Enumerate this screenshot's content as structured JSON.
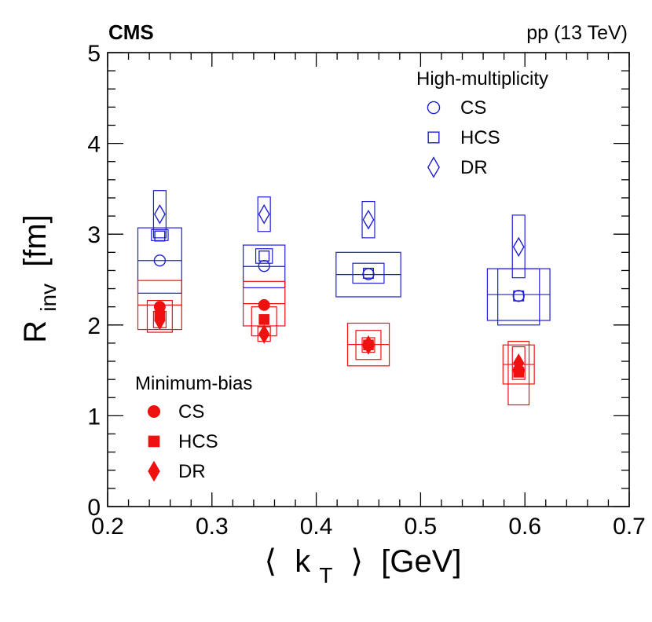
{
  "chart_data": {
    "type": "scatter",
    "title_left": "CMS",
    "title_right": "pp (13 TeV)",
    "xlabel": {
      "open": "⟨",
      "var": "k",
      "sub": "T",
      "close": "⟩",
      "unit": "[GeV]"
    },
    "ylabel": {
      "var": "R",
      "sub": "inv",
      "unit": "[fm]"
    },
    "xlim": [
      0.2,
      0.7
    ],
    "ylim": [
      0,
      5
    ],
    "x_ticks": [
      {
        "v": 0.2,
        "label": "0.2"
      },
      {
        "v": 0.3,
        "label": "0.3"
      },
      {
        "v": 0.4,
        "label": "0.4"
      },
      {
        "v": 0.5,
        "label": "0.5"
      },
      {
        "v": 0.6,
        "label": "0.6"
      },
      {
        "v": 0.7,
        "label": "0.7"
      }
    ],
    "y_ticks": [
      {
        "v": 0,
        "label": "0"
      },
      {
        "v": 1,
        "label": "1"
      },
      {
        "v": 2,
        "label": "2"
      },
      {
        "v": 3,
        "label": "3"
      },
      {
        "v": 4,
        "label": "4"
      },
      {
        "v": 5,
        "label": "5"
      }
    ],
    "legends": [
      {
        "title": "High-multiplicity",
        "color": "#1f1fd6",
        "entries": [
          {
            "label": "CS",
            "marker": "circle-open"
          },
          {
            "label": "HCS",
            "marker": "square-open"
          },
          {
            "label": "DR",
            "marker": "diamond-open"
          }
        ]
      },
      {
        "title": "Minimum-bias",
        "color": "#ef1010",
        "entries": [
          {
            "label": "CS",
            "marker": "circle-filled"
          },
          {
            "label": "HCS",
            "marker": "square-filled"
          },
          {
            "label": "DR",
            "marker": "diamond-filled"
          }
        ]
      }
    ],
    "series": [
      {
        "name": "High-multiplicity CS",
        "color": "#1f1fd6",
        "marker": "circle-open",
        "points": [
          {
            "x": 0.25,
            "y": 2.71,
            "lo": 2.35,
            "hi": 3.07,
            "hw": 0.021
          },
          {
            "x": 0.35,
            "y": 2.65,
            "lo": 2.41,
            "hi": 2.88,
            "hw": 0.02
          },
          {
            "x": 0.45,
            "y": 2.56,
            "lo": 2.31,
            "hi": 2.8,
            "hw": 0.031
          },
          {
            "x": 0.594,
            "y": 2.32,
            "lo": 2.05,
            "hi": 2.62,
            "hw": 0.03
          }
        ]
      },
      {
        "name": "High-multiplicity HCS",
        "color": "#1f1fd6",
        "marker": "square-open",
        "points": [
          {
            "x": 0.25,
            "y": 2.98,
            "lo": 2.93,
            "hi": 3.05,
            "hw": 0.008
          },
          {
            "x": 0.35,
            "y": 2.76,
            "lo": 2.68,
            "hi": 2.84,
            "hw": 0.008
          },
          {
            "x": 0.45,
            "y": 2.57,
            "lo": 2.46,
            "hi": 2.68,
            "hw": 0.015
          },
          {
            "x": 0.594,
            "y": 2.32,
            "lo": 2.0,
            "hi": 2.62,
            "hw": 0.02
          }
        ]
      },
      {
        "name": "High-multiplicity DR",
        "color": "#1f1fd6",
        "marker": "diamond-open",
        "points": [
          {
            "x": 0.25,
            "y": 3.22,
            "lo": 2.96,
            "hi": 3.48,
            "hw": 0.006
          },
          {
            "x": 0.35,
            "y": 3.22,
            "lo": 3.03,
            "hi": 3.41,
            "hw": 0.006
          },
          {
            "x": 0.45,
            "y": 3.16,
            "lo": 2.96,
            "hi": 3.36,
            "hw": 0.006
          },
          {
            "x": 0.594,
            "y": 2.86,
            "lo": 2.52,
            "hi": 3.21,
            "hw": 0.006
          }
        ]
      },
      {
        "name": "Minimum-bias CS",
        "color": "#ef1010",
        "marker": "circle-filled",
        "points": [
          {
            "x": 0.25,
            "y": 2.2,
            "lo": 1.95,
            "hi": 2.49,
            "hw": 0.021
          },
          {
            "x": 0.35,
            "y": 2.22,
            "lo": 1.99,
            "hi": 2.48,
            "hw": 0.02
          },
          {
            "x": 0.45,
            "y": 1.78,
            "lo": 1.55,
            "hi": 2.02,
            "hw": 0.02
          },
          {
            "x": 0.594,
            "y": 1.5,
            "lo": 1.35,
            "hi": 1.78,
            "hw": 0.015
          }
        ]
      },
      {
        "name": "Minimum-bias HCS",
        "color": "#ef1010",
        "marker": "square-filled",
        "points": [
          {
            "x": 0.25,
            "y": 2.1,
            "lo": 1.92,
            "hi": 2.27,
            "hw": 0.012
          },
          {
            "x": 0.35,
            "y": 2.06,
            "lo": 1.88,
            "hi": 2.2,
            "hw": 0.012
          },
          {
            "x": 0.45,
            "y": 1.78,
            "lo": 1.62,
            "hi": 1.94,
            "hw": 0.012
          },
          {
            "x": 0.594,
            "y": 1.48,
            "lo": 1.12,
            "hi": 1.82,
            "hw": 0.01
          }
        ]
      },
      {
        "name": "Minimum-bias DR",
        "color": "#ef1010",
        "marker": "diamond-filled",
        "points": [
          {
            "x": 0.25,
            "y": 2.05,
            "lo": 1.97,
            "hi": 2.15,
            "hw": 0.006
          },
          {
            "x": 0.35,
            "y": 1.9,
            "lo": 1.82,
            "hi": 1.98,
            "hw": 0.006
          },
          {
            "x": 0.45,
            "y": 1.78,
            "lo": 1.7,
            "hi": 1.86,
            "hw": 0.006
          },
          {
            "x": 0.594,
            "y": 1.58,
            "lo": 1.4,
            "hi": 1.76,
            "hw": 0.006
          }
        ]
      }
    ]
  }
}
